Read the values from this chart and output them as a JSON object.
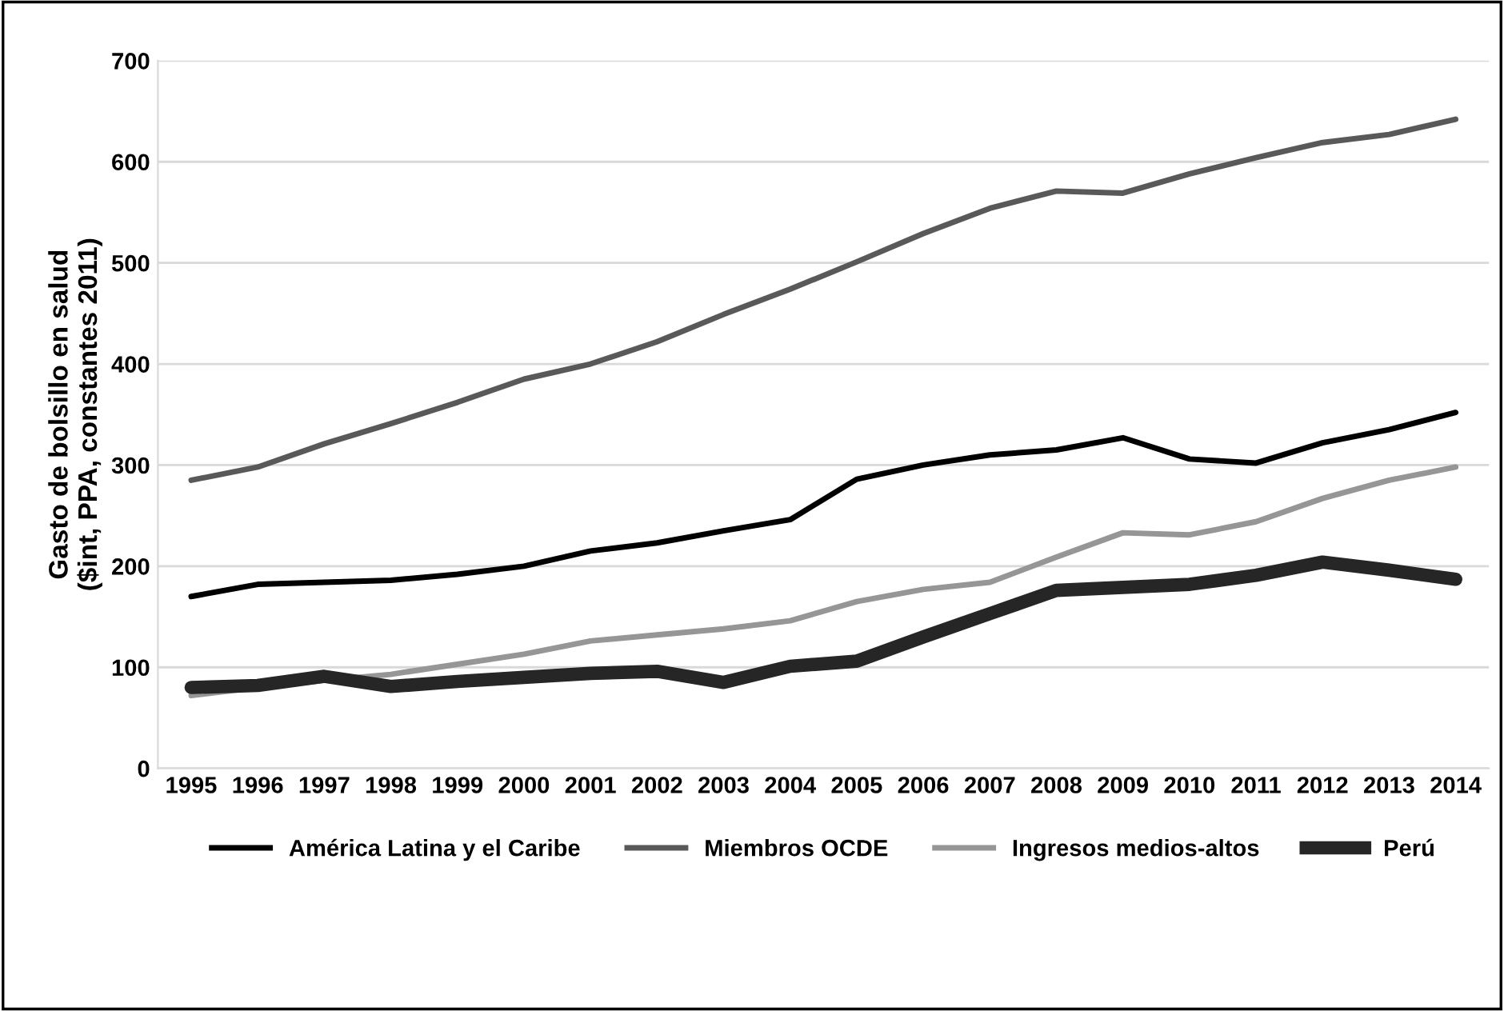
{
  "chart_data": {
    "type": "line",
    "ylabel": "Gasto de bolsillo en salud\n($int, PPA, constantes 2011)",
    "categories": [
      "1995",
      "1996",
      "1997",
      "1998",
      "1999",
      "2000",
      "2001",
      "2002",
      "2003",
      "2004",
      "2005",
      "2006",
      "2007",
      "2008",
      "2009",
      "2010",
      "2011",
      "2012",
      "2013",
      "2014"
    ],
    "series": [
      {
        "name": "América Latina y el Caribe",
        "color": "#000000",
        "values": [
          170,
          182,
          184,
          186,
          192,
          200,
          215,
          223,
          235,
          246,
          286,
          300,
          310,
          315,
          327,
          306,
          302,
          322,
          335,
          352
        ]
      },
      {
        "name": "Miembros OCDE",
        "color": "#595959",
        "values": [
          285,
          298,
          321,
          341,
          362,
          385,
          400,
          422,
          449,
          474,
          501,
          529,
          554,
          571,
          569,
          588,
          604,
          619,
          627,
          642
        ]
      },
      {
        "name": "Ingresos medios-altos",
        "color": "#969696",
        "values": [
          72,
          80,
          87,
          93,
          103,
          113,
          126,
          132,
          138,
          146,
          165,
          177,
          184,
          209,
          233,
          231,
          244,
          267,
          285,
          298
        ]
      },
      {
        "name": "Perú",
        "color": "#262626",
        "values": [
          80,
          82,
          91,
          81,
          86,
          90,
          94,
          96,
          85,
          101,
          106,
          130,
          153,
          176,
          179,
          182,
          191,
          204,
          196,
          187
        ]
      }
    ],
    "ylim": [
      0,
      700
    ],
    "yticks": [
      0,
      100,
      200,
      300,
      400,
      500,
      600,
      700
    ],
    "grid": "y",
    "legend": "bottom",
    "marker": "none",
    "line_style": "solid"
  }
}
